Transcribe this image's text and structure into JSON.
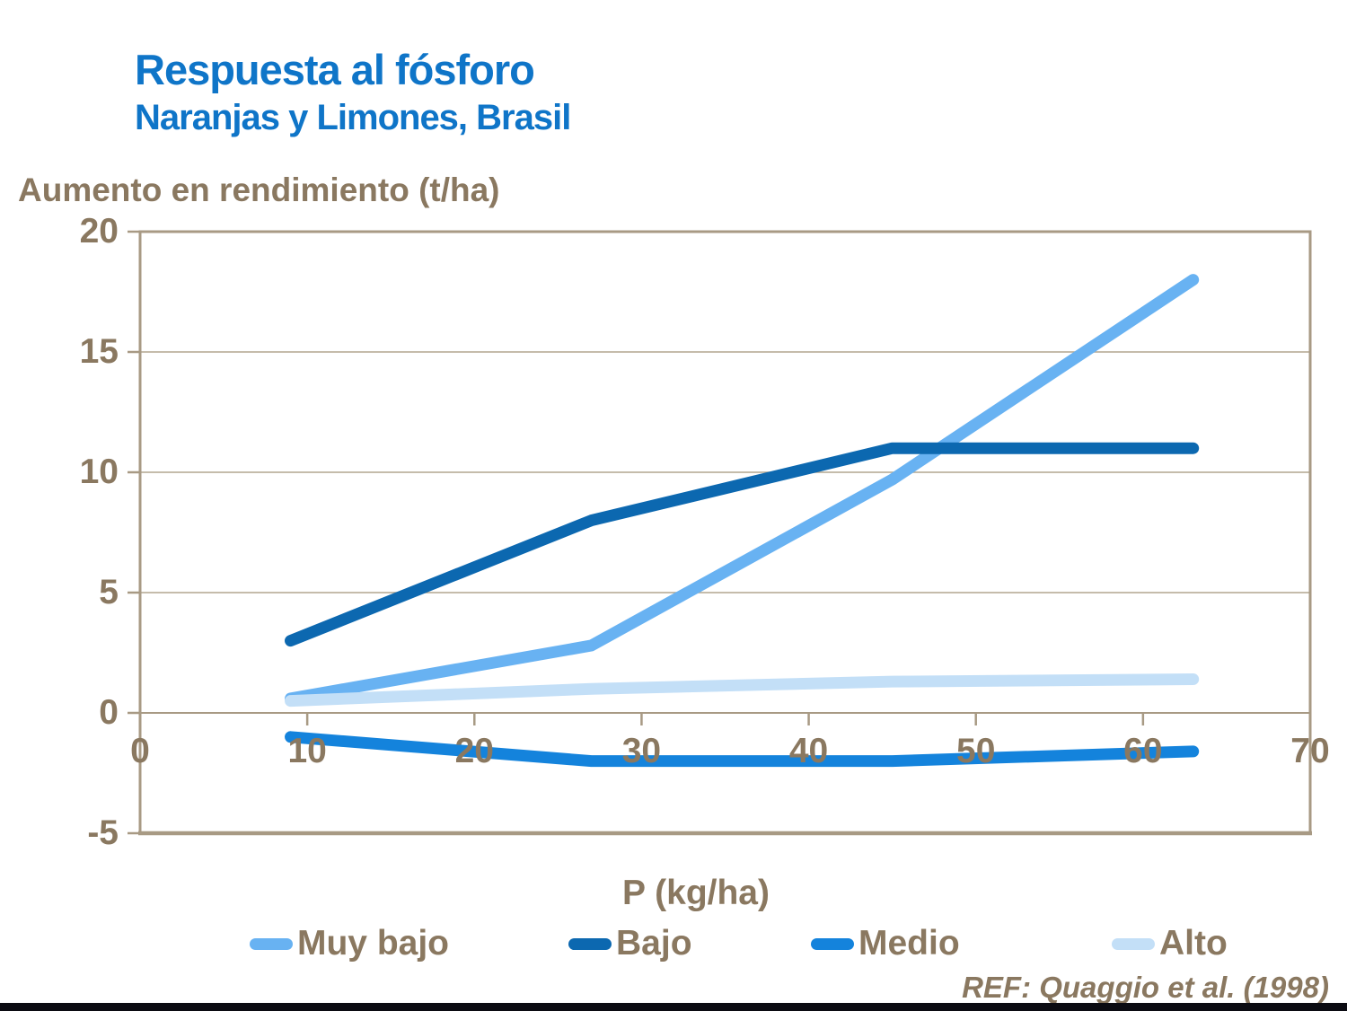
{
  "slide": {
    "title": "Respuesta al fósforo",
    "subtitle": "Naranjas y Limones, Brasil",
    "reference": "REF: Quaggio et al. (1998)"
  },
  "colors": {
    "title_blue": "#0F75C8",
    "text_brown": "#8A7860",
    "axis_border_tan": "#A89A84",
    "gridline_tan": "#B2A58F",
    "footer_bar_dark": "#0B0B12",
    "background": "#FFFFFF"
  },
  "chart_data": {
    "type": "line",
    "title": "",
    "xlabel": "P (kg/ha)",
    "ylabel": "Aumento en rendimiento (t/ha)",
    "xlim": [
      0,
      70
    ],
    "ylim": [
      -5,
      20
    ],
    "xticks": [
      0,
      10,
      20,
      30,
      40,
      50,
      60,
      70
    ],
    "yticks": [
      20,
      15,
      10,
      5,
      0,
      -5
    ],
    "grid": "horizontal",
    "legend_position": "bottom",
    "x": [
      9,
      27,
      45,
      63
    ],
    "series": [
      {
        "name": "Muy bajo",
        "color": "#68B2F2",
        "values": [
          0.6,
          2.8,
          9.7,
          18
        ]
      },
      {
        "name": "Bajo",
        "color": "#0C68B0",
        "values": [
          3,
          8,
          11,
          11
        ]
      },
      {
        "name": "Medio",
        "color": "#1483DC",
        "values": [
          -1,
          -2,
          -2,
          -1.6
        ]
      },
      {
        "name": "Alto",
        "color": "#C3DFF7",
        "values": [
          0.5,
          1.0,
          1.3,
          1.4
        ]
      }
    ]
  }
}
